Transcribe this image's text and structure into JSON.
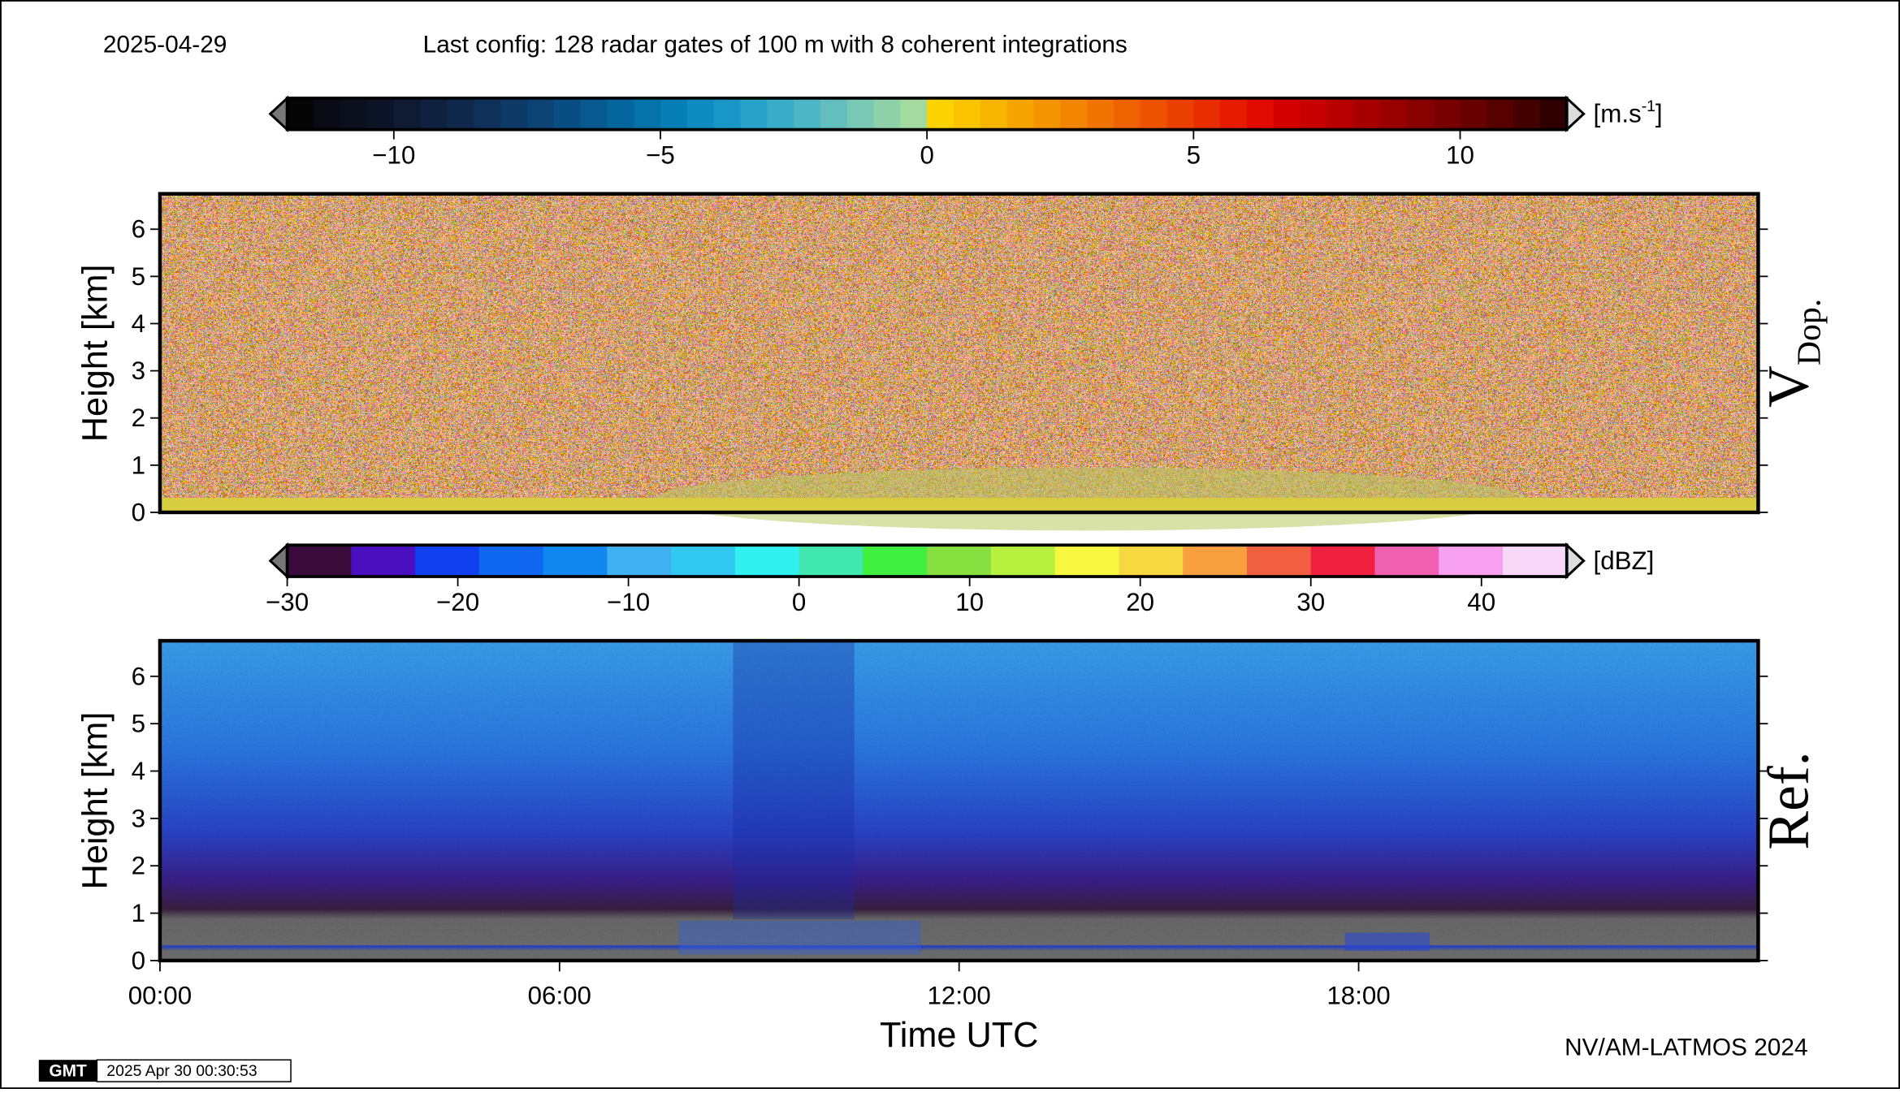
{
  "header": {
    "date": "2025-04-29",
    "config": "Last config: 128 radar gates of 100 m with 8 coherent integrations"
  },
  "chart_data": [
    {
      "type": "heatmap",
      "ylabel": "Height [km]",
      "ylim": [
        0,
        6.75
      ],
      "yticks": [
        0,
        1,
        2,
        3,
        4,
        5,
        6
      ],
      "panel_label": "V",
      "panel_label_sub": "Dop.",
      "colorbar": {
        "lim": [
          -12,
          12
        ],
        "ticks": [
          {
            "value": -10,
            "label": "−10"
          },
          {
            "value": -5,
            "label": "−5"
          },
          0,
          5,
          10
        ],
        "unit": "[m.s",
        "unit_sup": "-1",
        "unit_end": "]",
        "colors": [
          "#050505",
          "#0a0a14",
          "#0c0f1e",
          "#0e1428",
          "#0f1a33",
          "#10203f",
          "#10284c",
          "#0f3058",
          "#0d3a66",
          "#0b4474",
          "#084e82",
          "#065a90",
          "#05669e",
          "#0572aa",
          "#087eb6",
          "#0e8bc0",
          "#1897c6",
          "#28a2c8",
          "#3aadc8",
          "#4db6c4",
          "#62bfbd",
          "#78c8b3",
          "#8ed1a9",
          "#a3daa0",
          "#fcd200",
          "#fac400",
          "#f8b500",
          "#f6a500",
          "#f49500",
          "#f28500",
          "#f07400",
          "#ee6300",
          "#ec5200",
          "#ea4000",
          "#e82e00",
          "#e61c00",
          "#e00a00",
          "#d40000",
          "#c60000",
          "#b80000",
          "#a80000",
          "#980000",
          "#880000",
          "#780000",
          "#680000",
          "#560000",
          "#440000",
          "#300000"
        ]
      }
    },
    {
      "type": "heatmap",
      "ylabel": "Height [km]",
      "xlabel": "Time UTC",
      "xlim": [
        0,
        24
      ],
      "xticks": [
        {
          "value": 0,
          "label": "00:00"
        },
        {
          "value": 6,
          "label": "06:00"
        },
        {
          "value": 12,
          "label": "12:00"
        },
        {
          "value": 18,
          "label": "18:00"
        }
      ],
      "ylim": [
        0,
        6.75
      ],
      "yticks": [
        0,
        1,
        2,
        3,
        4,
        5,
        6
      ],
      "panel_label": "Ref.",
      "colorbar": {
        "lim": [
          -30,
          45
        ],
        "ticks": [
          {
            "value": -30,
            "label": "−30"
          },
          {
            "value": -20,
            "label": "−20"
          },
          {
            "value": -10,
            "label": "−10"
          },
          0,
          10,
          20,
          30,
          40
        ],
        "unit": "[dBZ]",
        "colors": [
          "#3a0a3a",
          "#4a10c0",
          "#1040f0",
          "#1068f0",
          "#1088f0",
          "#40b0f0",
          "#30c8f0",
          "#30f0f0",
          "#40e8b0",
          "#40f040",
          "#88e040",
          "#b8f040",
          "#f8f840",
          "#f8d840",
          "#f8a040",
          "#f06040",
          "#f02040",
          "#f060b0",
          "#f8a0f0",
          "#f8d8f8"
        ]
      }
    }
  ],
  "footer": {
    "credit": "NV/AM-LATMOS 2024",
    "logo": "GMT",
    "timestamp": "2025 Apr 30 00:30:53"
  }
}
